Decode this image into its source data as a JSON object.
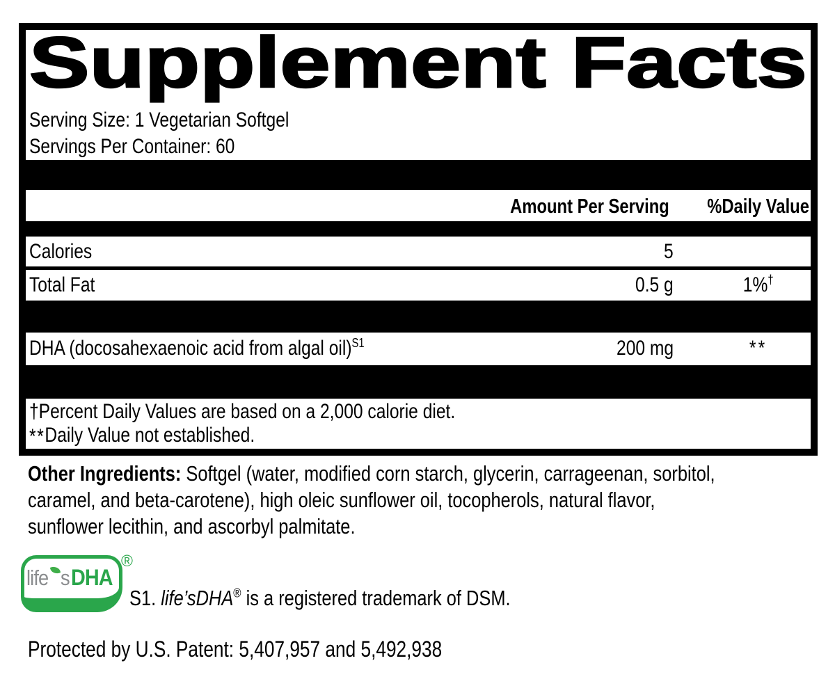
{
  "colors": {
    "accent_green": "#2aa64b",
    "logo_gray": "#8a8c8e",
    "text_black": "#000000"
  },
  "panel": {
    "title": "Supplement Facts",
    "serving_size": "Serving Size: 1 Vegetarian Softgel",
    "servings_per_container": "Servings Per Container: 60",
    "columns": {
      "amount": "Amount Per Serving",
      "daily_value": "%Daily Value"
    },
    "rows": [
      {
        "label": "Calories",
        "amount": "5",
        "dv": ""
      },
      {
        "label": "Total Fat",
        "amount": "0.5 g",
        "dv": "1%",
        "dv_sup": "†"
      },
      {
        "label": "DHA (docosahexaenoic acid from algal oil)",
        "label_sup": "S1",
        "amount": "200 mg",
        "dv": "**"
      }
    ],
    "footnotes": {
      "daily_value": "†Percent Daily Values are based on a 2,000 calorie diet.",
      "not_established_sym": "**",
      "not_established_text": "Daily Value not established."
    }
  },
  "other_ingredients": {
    "label": "Other Ingredients:",
    "line1_rest": " Softgel (water, modified corn starch, glycerin, carrageenan, sorbitol,",
    "line2": "caramel, and beta-carotene), high oleic sunflower oil, tocopherols, natural flavor,",
    "line3": "sunflower lecithin, and ascorbyl palmitate."
  },
  "logo": {
    "word_life": "life",
    "word_s": "s",
    "word_dha": "DHA",
    "registered": "®"
  },
  "trademark_note": {
    "prefix": "S1. ",
    "brand": "life’sDHA",
    "registered": "®",
    "suffix": " is a registered trademark of DSM."
  },
  "patent_line": "Protected by U.S. Patent: 5,407,957 and 5,492,938"
}
